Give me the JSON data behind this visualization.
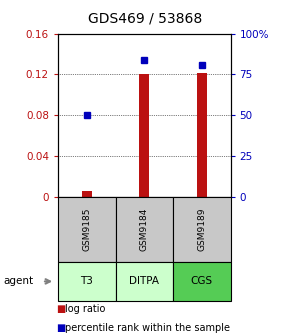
{
  "title": "GDS469 / 53868",
  "samples": [
    "GSM9185",
    "GSM9184",
    "GSM9189"
  ],
  "agents": [
    "T3",
    "DITPA",
    "CGS"
  ],
  "log_ratio": [
    0.005,
    0.12,
    0.121
  ],
  "percentile_rank_pct": [
    50,
    83.5,
    81.0
  ],
  "ylim_left": [
    0,
    0.16
  ],
  "ylim_right": [
    0,
    100
  ],
  "yticks_left": [
    0,
    0.04,
    0.08,
    0.12,
    0.16
  ],
  "ytick_labels_left": [
    "0",
    "0.04",
    "0.08",
    "0.12",
    "0.16"
  ],
  "yticks_right": [
    0,
    25,
    50,
    75,
    100
  ],
  "ytick_labels_right": [
    "0",
    "25",
    "50",
    "75",
    "100%"
  ],
  "bar_color": "#bb1111",
  "dot_color": "#0000bb",
  "sample_box_color": "#c8c8c8",
  "agent_colors": [
    "#ccffcc",
    "#ccffcc",
    "#55cc55"
  ],
  "title_fontsize": 10,
  "tick_fontsize": 7.5,
  "legend_fontsize": 7
}
